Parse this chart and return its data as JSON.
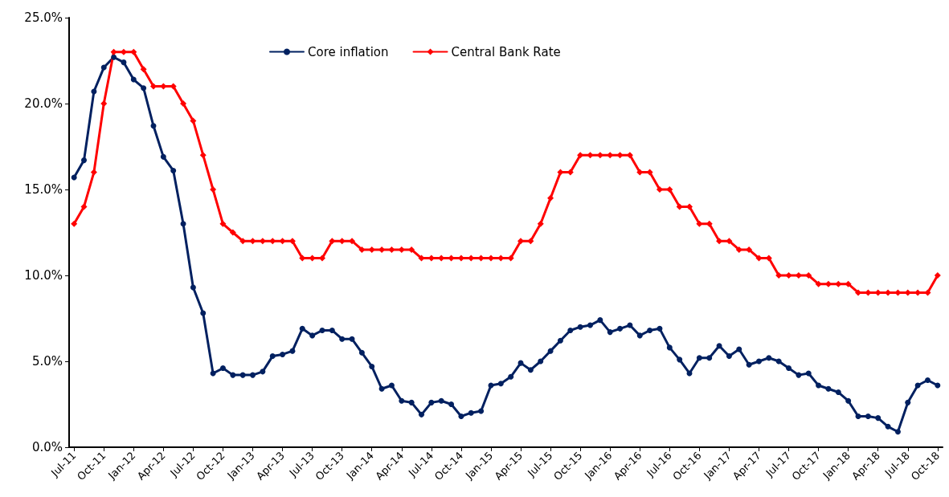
{
  "chart_data": {
    "type": "line",
    "categories": [
      "Jul-11",
      null,
      null,
      "Oct-11",
      null,
      null,
      "Jan-12",
      null,
      null,
      "Apr-12",
      null,
      null,
      "Jul-12",
      null,
      null,
      "Oct-12",
      null,
      null,
      "Jan-13",
      null,
      null,
      "Apr-13",
      null,
      null,
      "Jul-13",
      null,
      null,
      "Oct-13",
      null,
      null,
      "Jan-14",
      null,
      null,
      "Apr-14",
      null,
      null,
      "Jul-14",
      null,
      null,
      "Oct-14",
      null,
      null,
      "Jan-15",
      null,
      null,
      "Apr-15",
      null,
      null,
      "Jul-15",
      null,
      null,
      "Oct-15",
      null,
      null,
      "Jan-16",
      null,
      null,
      "Apr-16",
      null,
      null,
      "Jul-16",
      null,
      null,
      "Oct-16",
      null,
      null,
      "Jan-17",
      null,
      null,
      "Apr-17",
      null,
      null,
      "Jul-17",
      null,
      null,
      "Oct-17",
      null,
      null,
      "Jan-18",
      null,
      null,
      "Apr-18",
      null,
      null,
      "Jul-18",
      null,
      null,
      "Oct-18"
    ],
    "series": [
      {
        "name": "Core inflation",
        "color": "#002060",
        "marker": "circle",
        "values": [
          15.7,
          16.7,
          20.7,
          22.1,
          22.7,
          22.4,
          21.4,
          20.9,
          18.7,
          16.9,
          16.1,
          13.0,
          9.3,
          7.8,
          4.3,
          4.6,
          4.2,
          4.2,
          4.2,
          4.4,
          5.3,
          5.4,
          5.6,
          6.9,
          6.5,
          6.8,
          6.8,
          6.3,
          6.3,
          5.5,
          4.7,
          3.4,
          3.6,
          2.7,
          2.6,
          1.9,
          2.6,
          2.7,
          2.5,
          1.8,
          2.0,
          2.1,
          3.6,
          3.7,
          4.1,
          4.9,
          4.5,
          5.0,
          5.6,
          6.2,
          6.8,
          7.0,
          7.1,
          7.4,
          6.7,
          6.9,
          7.1,
          6.5,
          6.8,
          6.9,
          5.8,
          5.1,
          4.3,
          5.2,
          5.2,
          5.9,
          5.3,
          5.7,
          4.8,
          5.0,
          5.2,
          5.0,
          4.6,
          4.2,
          4.3,
          3.6,
          3.4,
          3.2,
          2.7,
          1.8,
          1.8,
          1.7,
          1.2,
          0.9,
          2.6,
          3.6,
          3.9,
          3.6
        ]
      },
      {
        "name": "Central Bank Rate",
        "color": "#ff0000",
        "marker": "diamond",
        "values": [
          13,
          14,
          16,
          20,
          23,
          23,
          23,
          22,
          21,
          21,
          21,
          20,
          19,
          17,
          15,
          13,
          12.5,
          12,
          12,
          12,
          12,
          12,
          12,
          11,
          11,
          11,
          12,
          12,
          12,
          11.5,
          11.5,
          11.5,
          11.5,
          11.5,
          11.5,
          11,
          11,
          11,
          11,
          11,
          11,
          11,
          11,
          11,
          11,
          12,
          12,
          13,
          14.5,
          16,
          16,
          17,
          17,
          17,
          17,
          17,
          17,
          16,
          16,
          15,
          15,
          14,
          14,
          13,
          13,
          12,
          12,
          11.5,
          11.5,
          11,
          11,
          10,
          10,
          10,
          10,
          9.5,
          9.5,
          9.5,
          9.5,
          9,
          9,
          9,
          9,
          9,
          9,
          9,
          9,
          10
        ]
      }
    ],
    "ylim": [
      0,
      25
    ],
    "yticks": [
      {
        "value": 0,
        "label": "0.0%"
      },
      {
        "value": 5,
        "label": "5.0%"
      },
      {
        "value": 10,
        "label": "10.0%"
      },
      {
        "value": 15,
        "label": "15.0%"
      },
      {
        "value": 20,
        "label": "20.0%"
      },
      {
        "value": 25,
        "label": "25.0%"
      }
    ],
    "grid": false,
    "legend": "top",
    "line_style": "solid"
  }
}
